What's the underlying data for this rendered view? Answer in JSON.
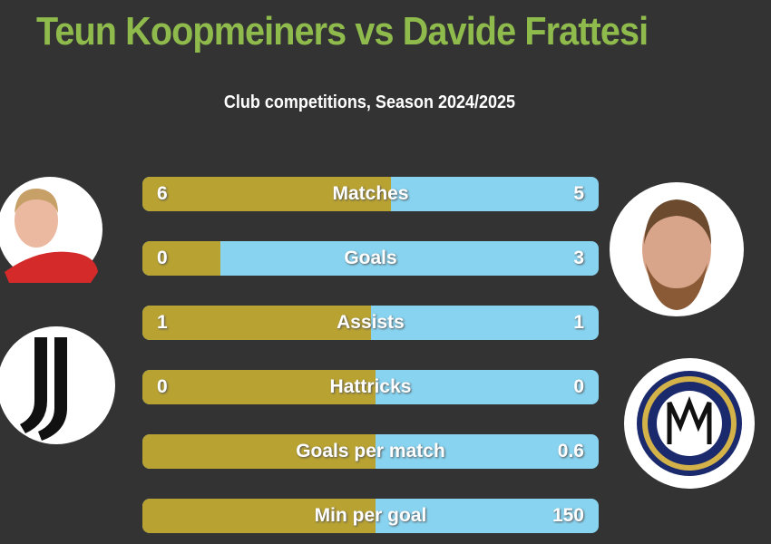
{
  "header": {
    "title": "Teun Koopmeiners vs Davide Frattesi",
    "subtitle": "Club competitions, Season 2024/2025"
  },
  "rows": [
    {
      "label": "Matches",
      "left": 6,
      "right": 5
    },
    {
      "label": "Goals",
      "left": 0,
      "right": 3
    },
    {
      "label": "Assists",
      "left": 1,
      "right": 1
    },
    {
      "label": "Hattricks",
      "left": 0,
      "right": 0
    },
    {
      "label": "Goals per match",
      "right": 0.6
    },
    {
      "label": "Min per goal",
      "right": 150
    }
  ]
}
